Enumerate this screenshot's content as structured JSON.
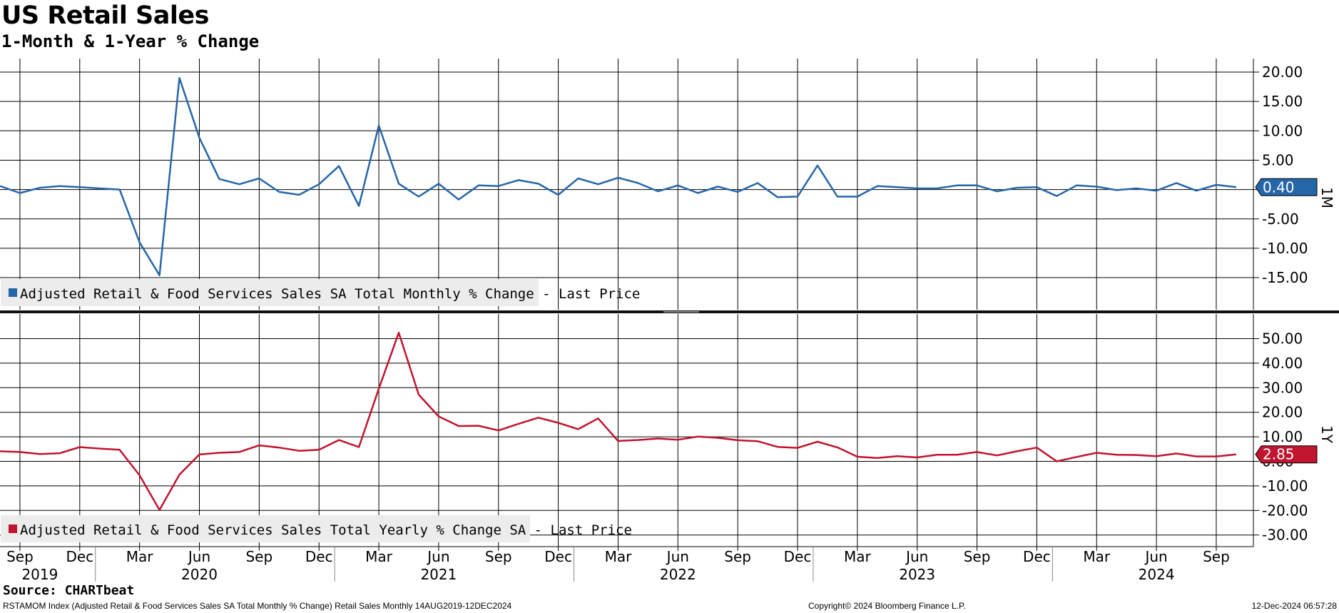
{
  "title": "US Retail Sales",
  "subtitle": "1-Month & 1-Year % Change",
  "source": "Source: CHARTbeat",
  "footer": {
    "description": "RSTAMOM Index (Adjusted Retail & Food Services Sales SA Total Monthly % Change) Retail Sales  Monthly 14AUG2019-12DEC2024",
    "copyright": "Copyright© 2024 Bloomberg Finance L.P.",
    "timestamp": "12-Dec-2024 06:57:28"
  },
  "colors": {
    "series_1m": "#2566a8",
    "series_1y": "#c0142f",
    "grid": "#000000",
    "legend_bg": "#ececec"
  },
  "chart_data": [
    {
      "type": "line",
      "panel_label": "1M",
      "legend": "Adjusted Retail & Food Services Sales SA Total Monthly % Change - Last Price",
      "last_value_label": "0.40",
      "y_ticks": [
        "20.00",
        "15.00",
        "10.00",
        "5.00",
        "",
        "-5.00",
        "-10.00",
        "-15.00"
      ],
      "y_tick_values": [
        20,
        15,
        10,
        5,
        0,
        -5,
        -10,
        -15
      ],
      "ylim": [
        -20,
        22.5
      ],
      "x": [
        "2019-08",
        "2019-09",
        "2019-10",
        "2019-11",
        "2019-12",
        "2020-01",
        "2020-02",
        "2020-03",
        "2020-04",
        "2020-05",
        "2020-06",
        "2020-07",
        "2020-08",
        "2020-09",
        "2020-10",
        "2020-11",
        "2020-12",
        "2021-01",
        "2021-02",
        "2021-03",
        "2021-04",
        "2021-05",
        "2021-06",
        "2021-07",
        "2021-08",
        "2021-09",
        "2021-10",
        "2021-11",
        "2021-12",
        "2022-01",
        "2022-02",
        "2022-03",
        "2022-04",
        "2022-05",
        "2022-06",
        "2022-07",
        "2022-08",
        "2022-09",
        "2022-10",
        "2022-11",
        "2022-12",
        "2023-01",
        "2023-02",
        "2023-03",
        "2023-04",
        "2023-05",
        "2023-06",
        "2023-07",
        "2023-08",
        "2023-09",
        "2023-10",
        "2023-11",
        "2023-12",
        "2024-01",
        "2024-02",
        "2024-03",
        "2024-04",
        "2024-05",
        "2024-06",
        "2024-07",
        "2024-08",
        "2024-09",
        "2024-10"
      ],
      "values": [
        0.6,
        -0.6,
        0.3,
        0.6,
        0.4,
        0.2,
        0.0,
        -9.0,
        -14.6,
        19.0,
        8.8,
        1.8,
        0.9,
        1.9,
        -0.4,
        -0.9,
        0.9,
        4.0,
        -2.8,
        10.9,
        1.0,
        -1.2,
        1.0,
        -1.7,
        0.7,
        0.6,
        1.6,
        1.0,
        -0.9,
        1.9,
        0.9,
        2.0,
        1.1,
        -0.3,
        0.7,
        -0.6,
        0.5,
        -0.4,
        1.1,
        -1.3,
        -1.2,
        4.1,
        -1.2,
        -1.2,
        0.6,
        0.4,
        0.2,
        0.2,
        0.7,
        0.7,
        -0.3,
        0.3,
        0.4,
        -1.1,
        0.7,
        0.5,
        -0.1,
        0.2,
        -0.2,
        1.1,
        -0.2,
        0.8,
        0.4
      ],
      "last_value": 0.4,
      "grid": true
    },
    {
      "type": "line",
      "panel_label": "1Y",
      "legend": "Adjusted Retail & Food Services Sales Total Yearly % Change SA - Last Price",
      "last_value_label": "2.85",
      "y_ticks": [
        "50.00",
        "40.00",
        "30.00",
        "20.00",
        "10.00",
        "0.00",
        "-10.00",
        "-20.00",
        "-30.00"
      ],
      "y_tick_values": [
        50,
        40,
        30,
        20,
        10,
        0,
        -10,
        -20,
        -30
      ],
      "ylim": [
        -34,
        56
      ],
      "x": [
        "2019-08",
        "2019-09",
        "2019-10",
        "2019-11",
        "2019-12",
        "2020-01",
        "2020-02",
        "2020-03",
        "2020-04",
        "2020-05",
        "2020-06",
        "2020-07",
        "2020-08",
        "2020-09",
        "2020-10",
        "2020-11",
        "2020-12",
        "2021-01",
        "2021-02",
        "2021-03",
        "2021-04",
        "2021-05",
        "2021-06",
        "2021-07",
        "2021-08",
        "2021-09",
        "2021-10",
        "2021-11",
        "2021-12",
        "2022-01",
        "2022-02",
        "2022-03",
        "2022-04",
        "2022-05",
        "2022-06",
        "2022-07",
        "2022-08",
        "2022-09",
        "2022-10",
        "2022-11",
        "2022-12",
        "2023-01",
        "2023-02",
        "2023-03",
        "2023-04",
        "2023-05",
        "2023-06",
        "2023-07",
        "2023-08",
        "2023-09",
        "2023-10",
        "2023-11",
        "2023-12",
        "2024-01",
        "2024-02",
        "2024-03",
        "2024-04",
        "2024-05",
        "2024-06",
        "2024-07",
        "2024-08",
        "2024-09",
        "2024-10"
      ],
      "values": [
        4.1,
        3.8,
        3.0,
        3.3,
        5.8,
        5.2,
        4.7,
        -5.7,
        -19.8,
        -5.4,
        2.8,
        3.5,
        3.8,
        6.5,
        5.6,
        4.3,
        4.7,
        8.7,
        5.8,
        29.6,
        52.4,
        27.2,
        18.3,
        14.4,
        14.5,
        12.6,
        15.3,
        17.8,
        15.7,
        13.1,
        17.5,
        8.3,
        8.7,
        9.3,
        8.8,
        10.1,
        9.6,
        8.6,
        8.2,
        5.9,
        5.5,
        8.0,
        5.7,
        1.9,
        1.4,
        2.1,
        1.6,
        2.7,
        2.7,
        3.8,
        2.4,
        4.1,
        5.6,
        0.0,
        1.8,
        3.5,
        2.7,
        2.6,
        2.1,
        3.2,
        2.0,
        2.0,
        2.85
      ],
      "last_value": 2.85,
      "grid": true
    }
  ],
  "x_axis": {
    "month_labels": [
      "Sep",
      "Dec",
      "Mar",
      "Jun",
      "Sep",
      "Dec",
      "Mar",
      "Jun",
      "Sep",
      "Dec",
      "Mar",
      "Jun",
      "Sep",
      "Dec",
      "Mar",
      "Jun",
      "Sep",
      "Dec",
      "Mar",
      "Jun",
      "Sep"
    ],
    "month_label_dates": [
      "2019-09",
      "2019-12",
      "2020-03",
      "2020-06",
      "2020-09",
      "2020-12",
      "2021-03",
      "2021-06",
      "2021-09",
      "2021-12",
      "2022-03",
      "2022-06",
      "2022-09",
      "2022-12",
      "2023-03",
      "2023-06",
      "2023-09",
      "2023-12",
      "2024-03",
      "2024-06",
      "2024-09"
    ],
    "year_labels": [
      "2019",
      "2020",
      "2021",
      "2022",
      "2023",
      "2024"
    ],
    "year_label_dates": [
      "2019-10",
      "2020-06",
      "2021-06",
      "2022-06",
      "2023-06",
      "2024-06"
    ],
    "year_boundary_dates": [
      "2020-01",
      "2021-01",
      "2022-01",
      "2023-01",
      "2024-01"
    ]
  }
}
